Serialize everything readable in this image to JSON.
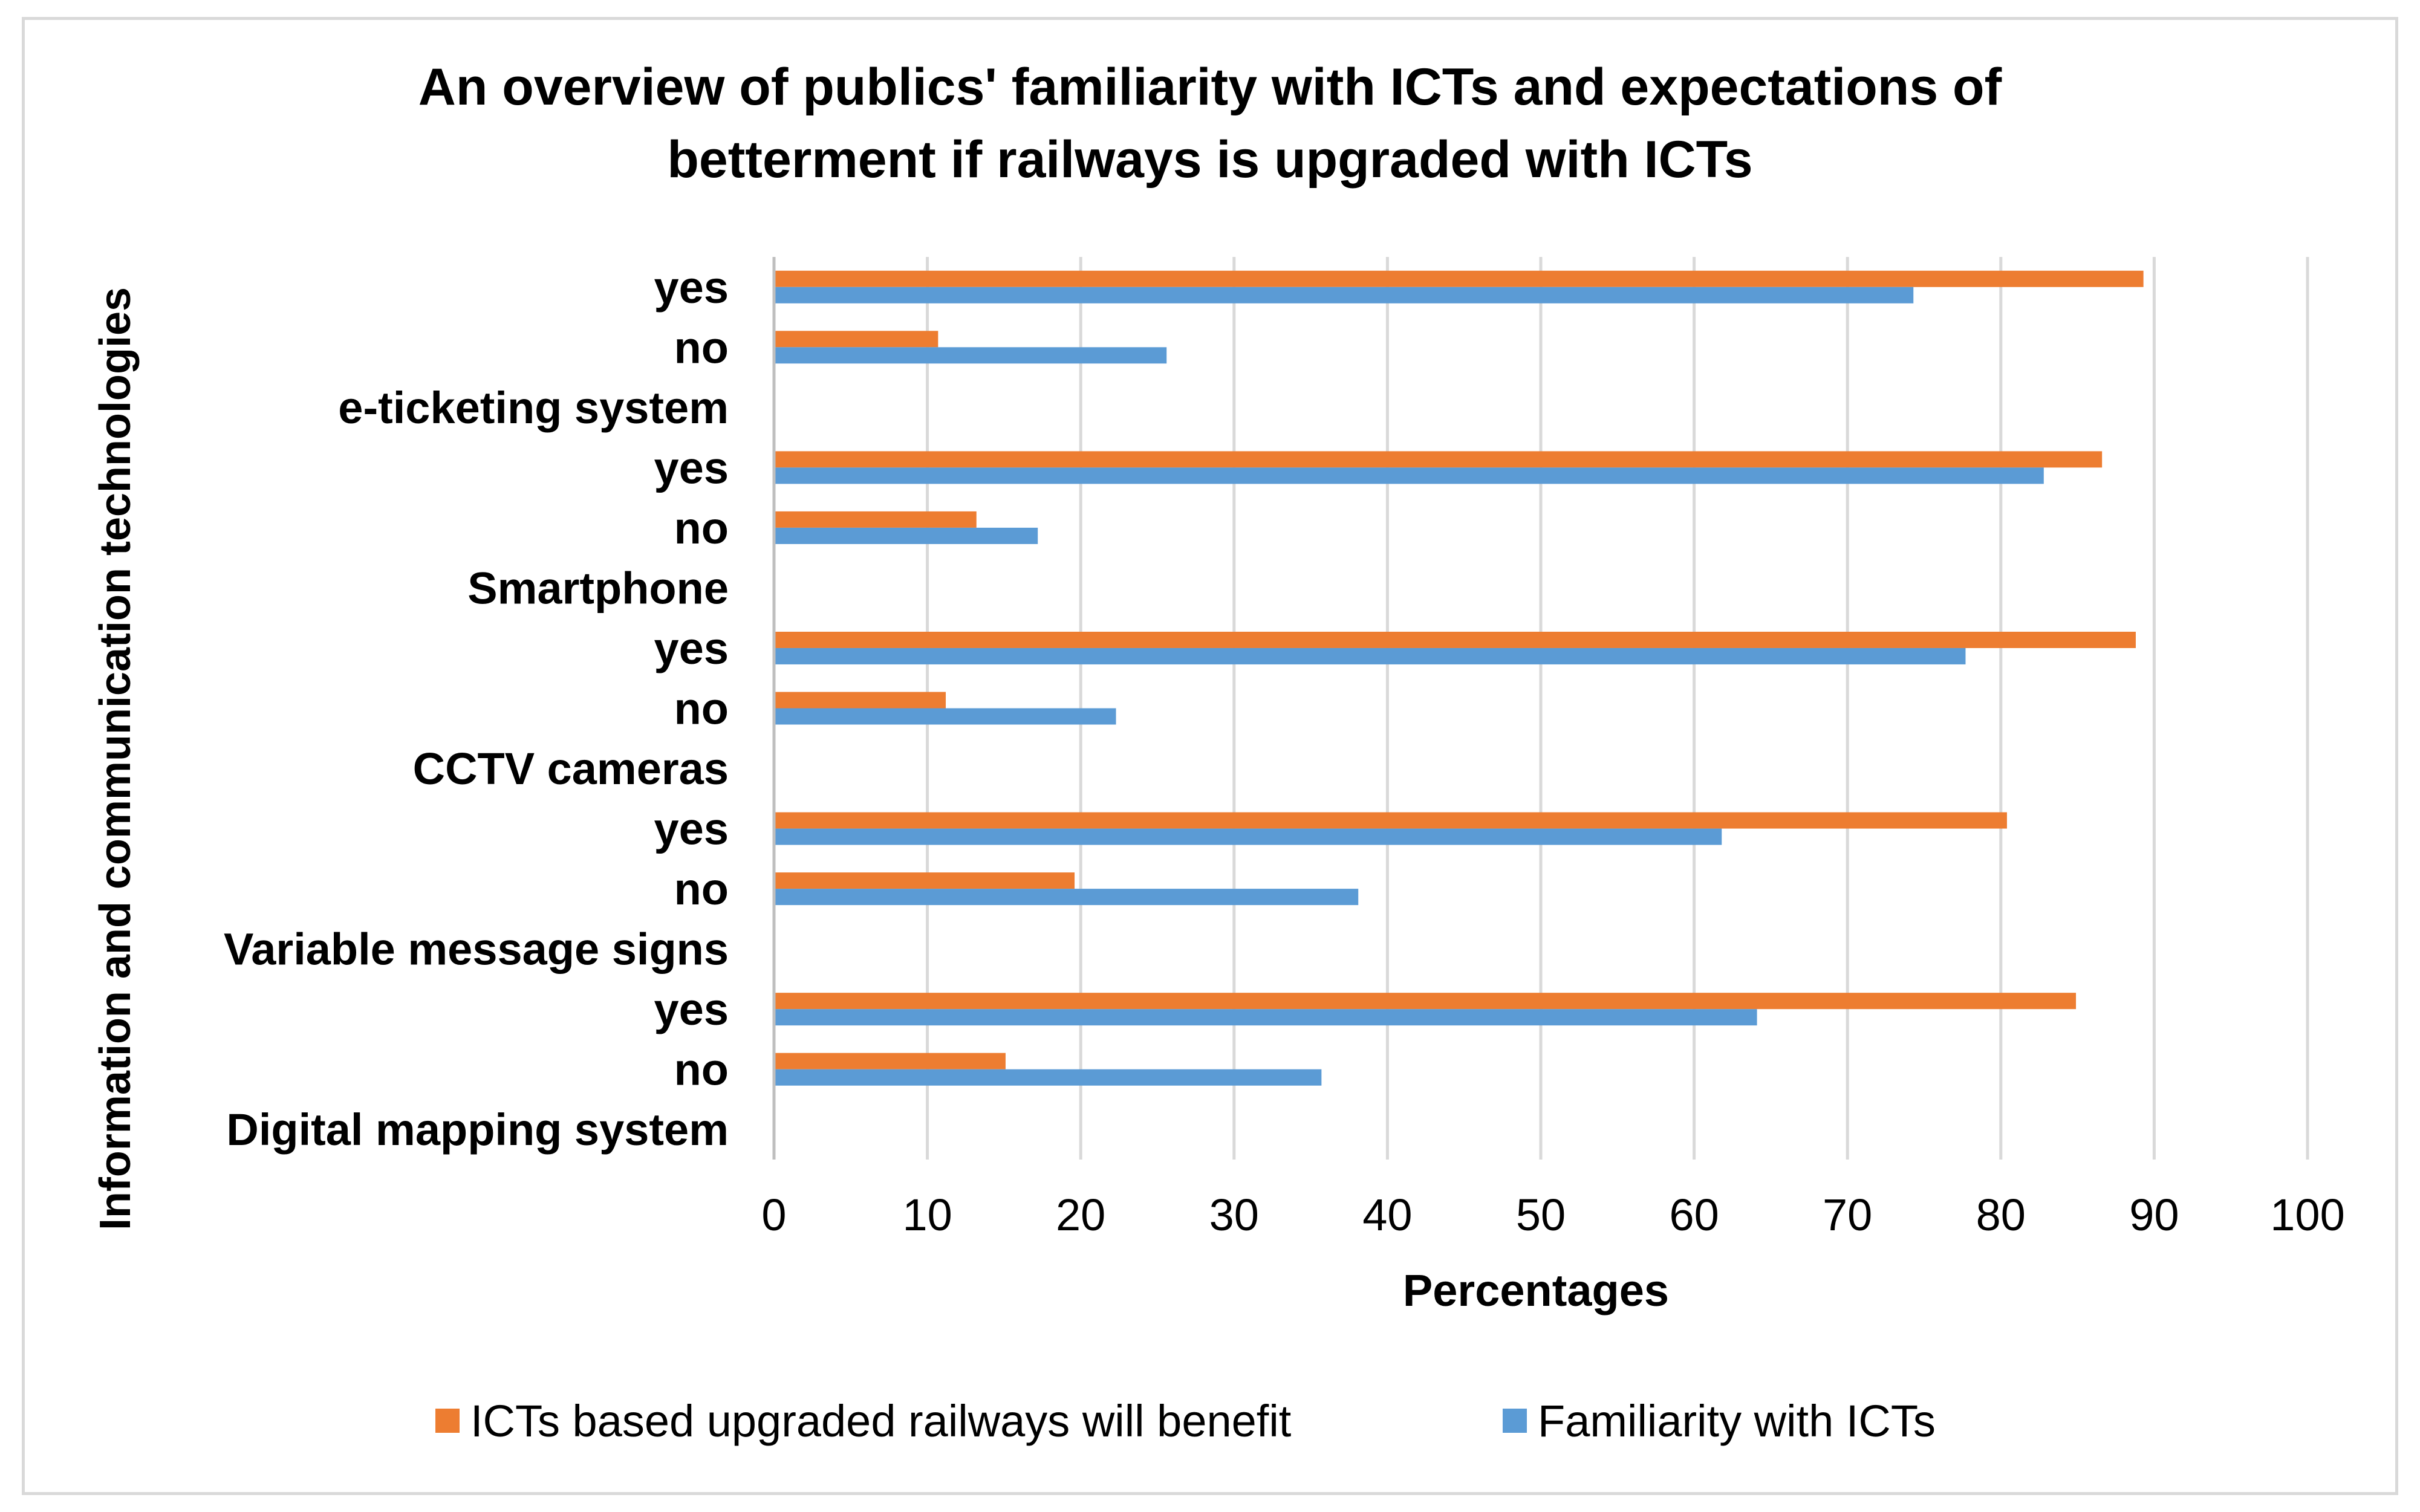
{
  "chart_data": {
    "type": "bar",
    "orientation": "horizontal",
    "title": "An overview of publics' familiarity with ICTs and expectations of betterment if railways is upgraded with ICTs",
    "title_lines": [
      "An overview of publics' familiarity with ICTs and expectations of",
      "betterment if railways is upgraded with ICTs"
    ],
    "xlabel": "Percentages",
    "ylabel": "Information and communication technologies",
    "xlim": [
      0,
      100
    ],
    "xticks": [
      0,
      10,
      20,
      30,
      40,
      50,
      60,
      70,
      80,
      90,
      100
    ],
    "grid": "vertical",
    "legend_position": "bottom",
    "categories_top_to_bottom": [
      "yes",
      "no",
      "e-ticketing system",
      "yes",
      "no",
      "Smartphone",
      "yes",
      "no",
      "CCTV cameras",
      "yes",
      "no",
      "Variable message signs",
      "yes",
      "no",
      "Digital mapping system"
    ],
    "series": [
      {
        "name": "ICTs based upgraded railways will benefit",
        "color": "#ED7D31",
        "values": [
          89.3,
          10.7,
          null,
          86.6,
          13.2,
          null,
          88.8,
          11.2,
          null,
          80.4,
          19.6,
          null,
          84.9,
          15.1,
          null
        ]
      },
      {
        "name": "Familiarity with ICTs",
        "color": "#5B9BD5",
        "values": [
          74.3,
          25.6,
          null,
          82.8,
          17.2,
          null,
          77.7,
          22.3,
          null,
          61.8,
          38.1,
          null,
          64.1,
          35.7,
          null
        ]
      }
    ]
  },
  "colors": {
    "gridline": "#d9d9d9",
    "axis": "#bfbfbf",
    "text": "#000000",
    "frame": "#d9d9d9"
  }
}
